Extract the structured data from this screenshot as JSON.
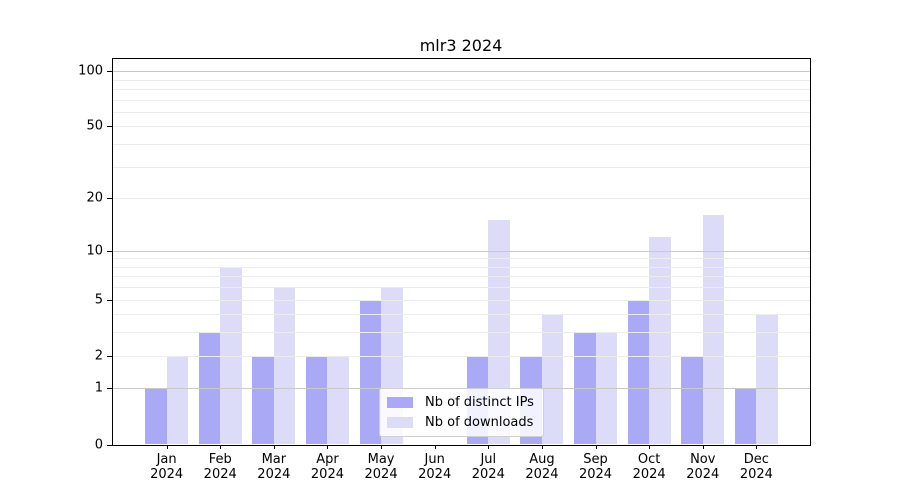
{
  "title": "mlr3 2024",
  "chart_data": {
    "type": "bar",
    "title": "mlr3 2024",
    "categories": [
      "Jan",
      "Feb",
      "Mar",
      "Apr",
      "May",
      "Jun",
      "Jul",
      "Aug",
      "Sep",
      "Oct",
      "Nov",
      "Dec"
    ],
    "year_label": "2024",
    "series": [
      {
        "name": "Nb of distinct IPs",
        "color": "#a9a9f5",
        "values": [
          1,
          3,
          2,
          2,
          5,
          0,
          2,
          2,
          3,
          5,
          2,
          1
        ]
      },
      {
        "name": "Nb of downloads",
        "color": "#dcdcf8",
        "values": [
          2,
          8,
          6,
          2,
          6,
          0,
          15,
          4,
          3,
          12,
          16,
          4
        ]
      }
    ],
    "yscale": "log1p",
    "ylim": [
      0,
      116
    ],
    "y_ticks": [
      0,
      1,
      2,
      5,
      10,
      20,
      50,
      100
    ],
    "grid_major_values": [
      1,
      10,
      100
    ],
    "grid_minor_values": [
      2,
      3,
      4,
      5,
      6,
      7,
      8,
      9,
      20,
      30,
      40,
      50,
      60,
      70,
      80,
      90
    ],
    "grid_major_color": "#c9c9c9",
    "grid_minor_color": "#ececec",
    "legend_position": "lower center",
    "grid_on": true
  }
}
